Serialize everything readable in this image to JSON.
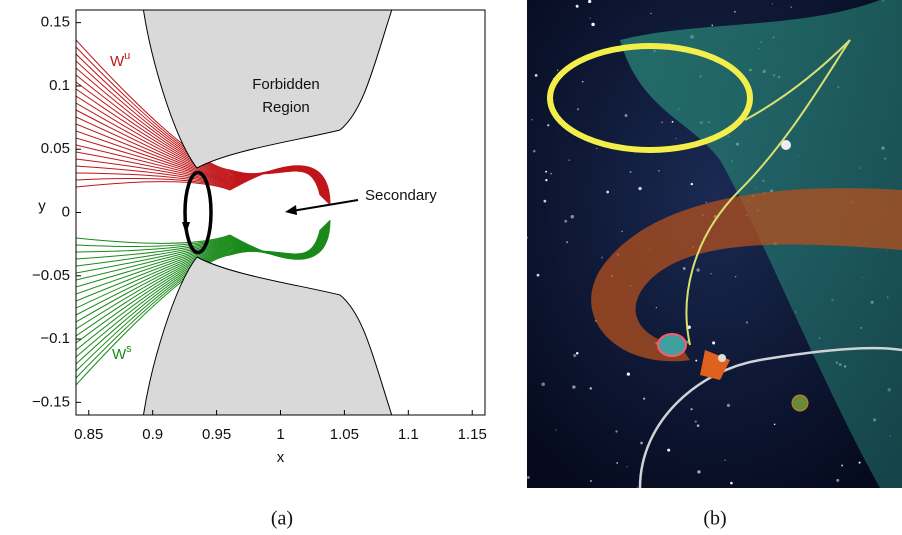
{
  "chart_data": {
    "type": "manifold-plot",
    "xlabel": "x",
    "ylabel": "y",
    "xlim": [
      0.84,
      1.16
    ],
    "ylim": [
      -0.16,
      0.16
    ],
    "xticks": [
      0.85,
      0.9,
      0.95,
      1,
      1.05,
      1.1,
      1.15
    ],
    "yticks": [
      0.15,
      0.1,
      0.05,
      0,
      {
        "value": -0.05,
        "label": "−0.05"
      },
      {
        "value": -0.1,
        "label": "−0.1"
      },
      {
        "value": -0.15,
        "label": "−0.15"
      }
    ],
    "annotations": {
      "forbidden": [
        "Forbidden",
        "Region"
      ],
      "secondary": "Secondary",
      "unstable": {
        "text": "W",
        "sup": "u",
        "color": "#c0161a"
      },
      "stable": {
        "text": "W",
        "sup": "s",
        "color": "#1a8a1a"
      }
    }
  },
  "captions": [
    "(a)",
    "(b)"
  ]
}
